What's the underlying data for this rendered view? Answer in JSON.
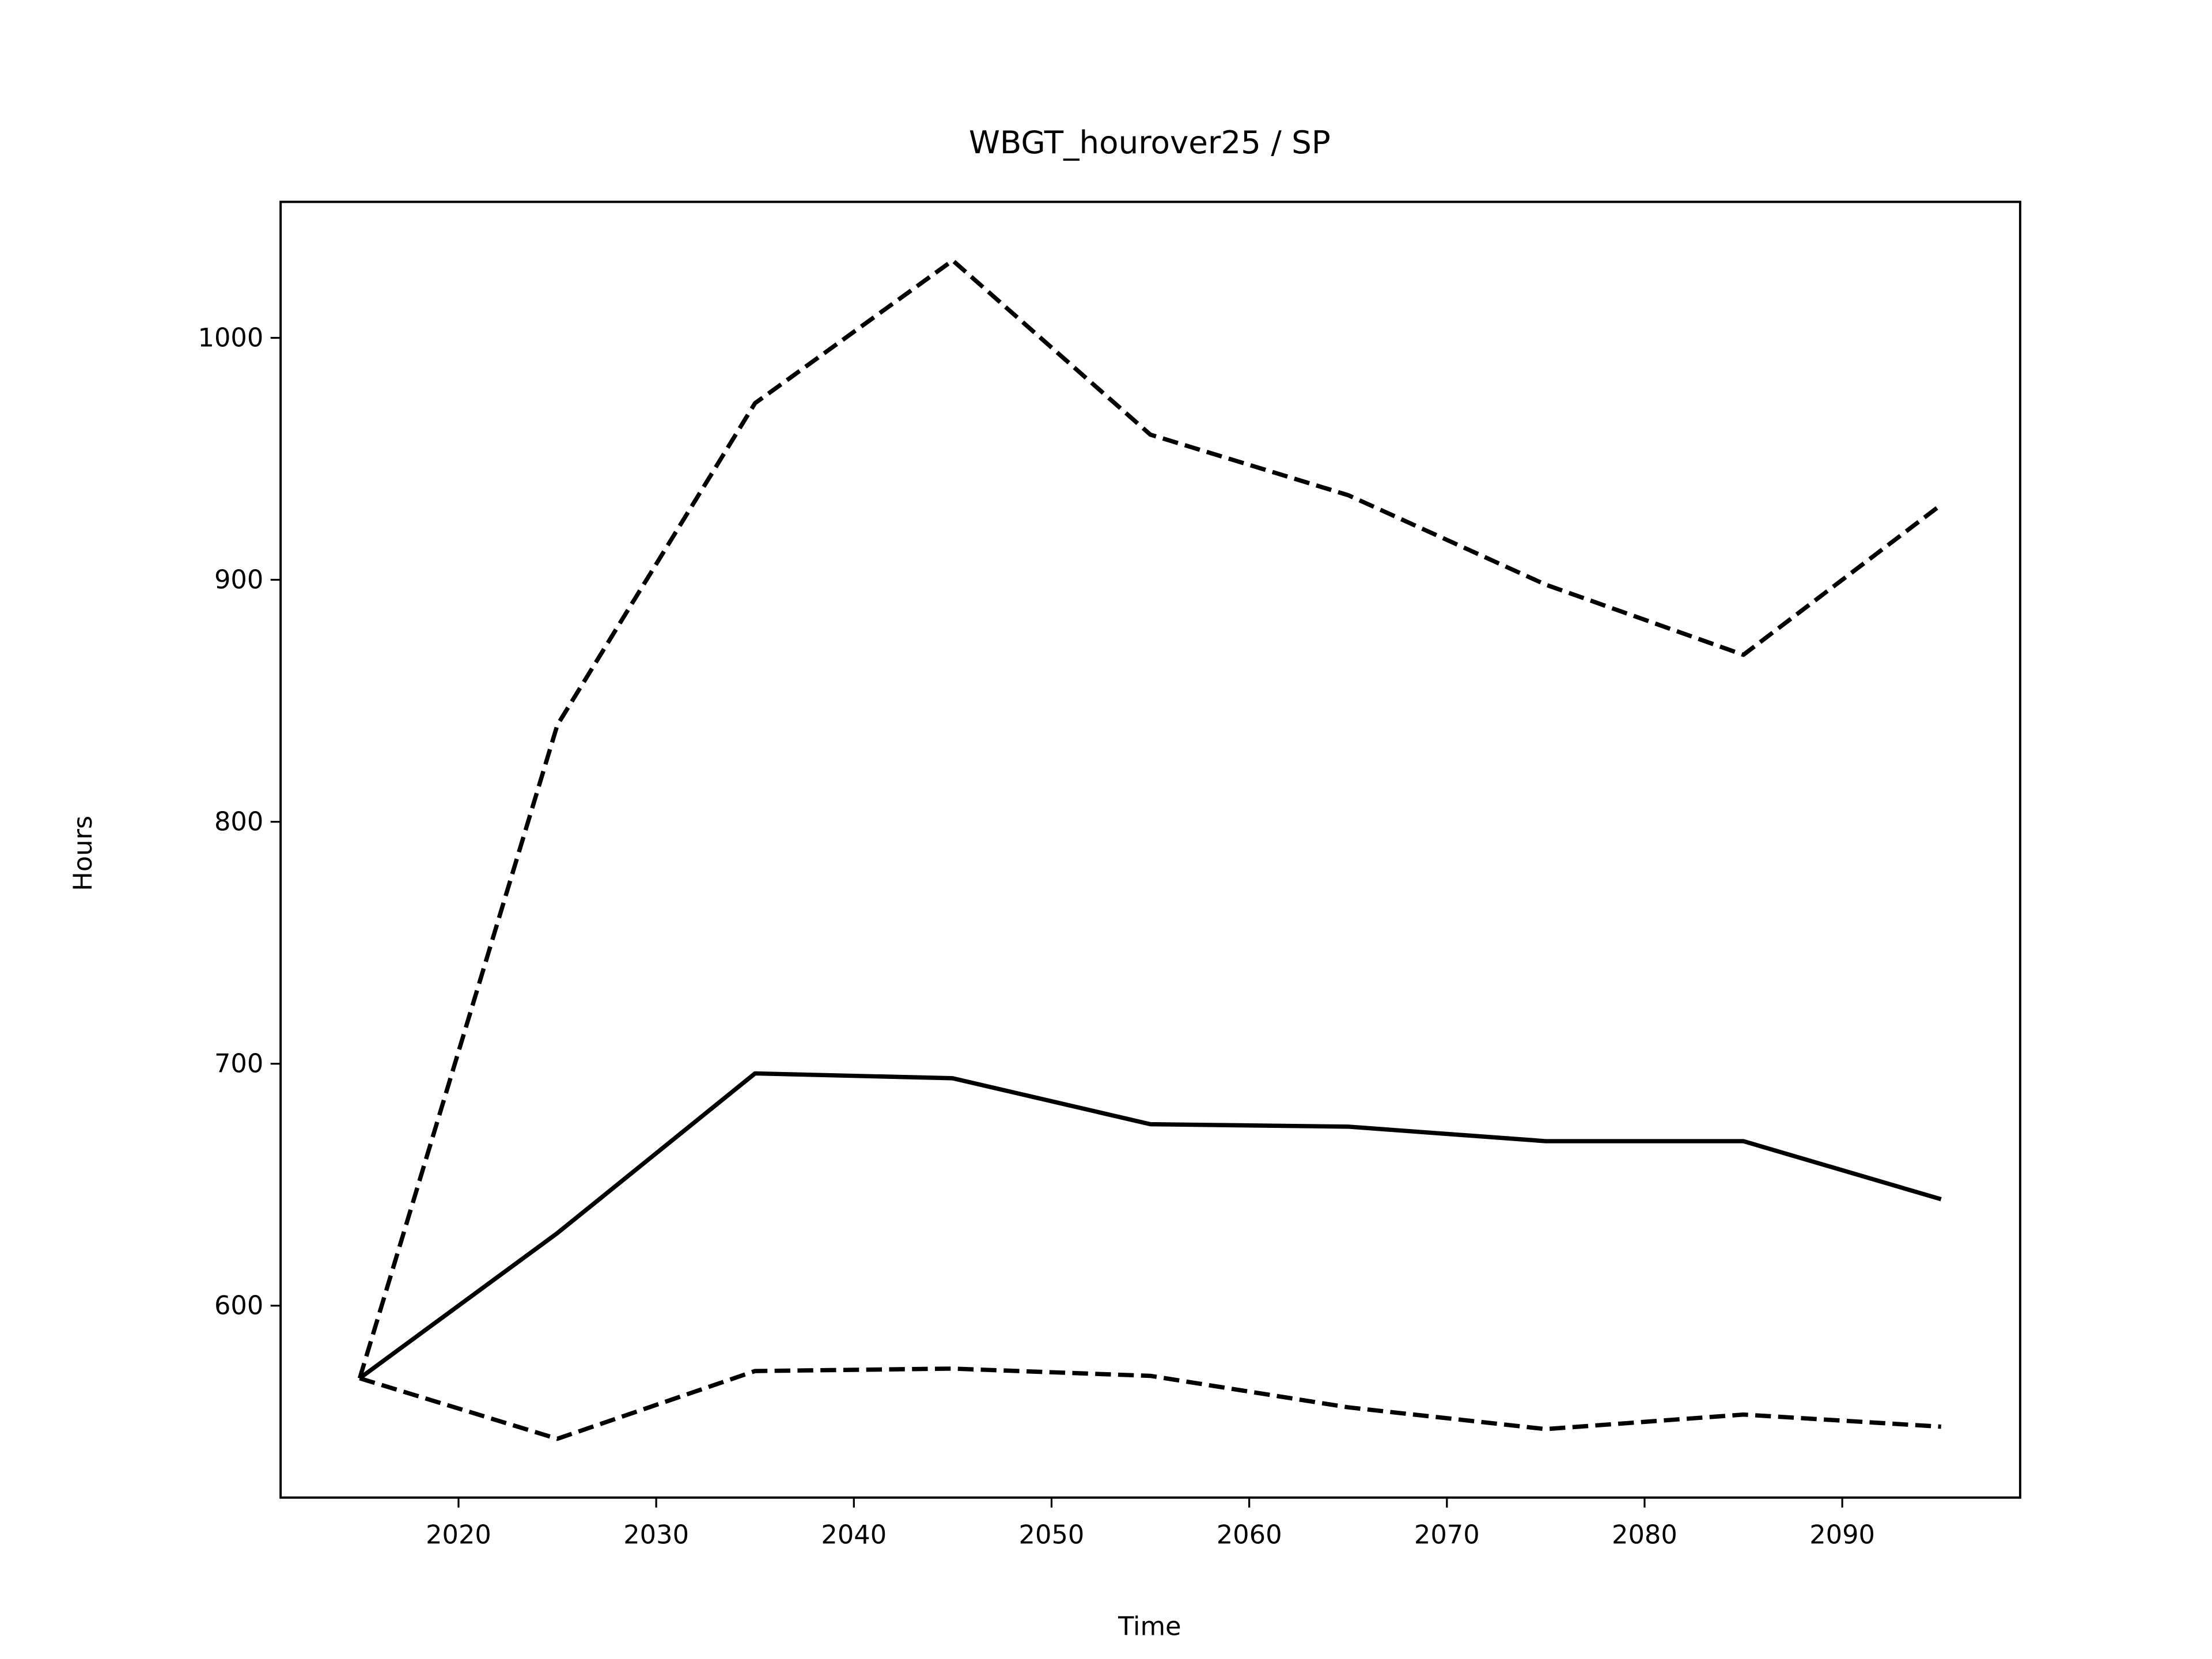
{
  "chart_data": {
    "type": "line",
    "title": "WBGT_hourover25 / SP",
    "xlabel": "Time",
    "ylabel": "Hours",
    "x": [
      2015,
      2025,
      2035,
      2045,
      2055,
      2065,
      2075,
      2085,
      2095
    ],
    "series": [
      {
        "color": "#000000",
        "linestyle": "solid",
        "values": [
          570,
          630,
          696,
          694,
          675,
          674,
          668,
          668,
          644
        ]
      },
      {
        "color": "#000000",
        "linestyle": "dashed",
        "values": [
          570,
          840,
          973,
          1032,
          960,
          935,
          898,
          869,
          931
        ]
      },
      {
        "color": "#000000",
        "linestyle": "dashed",
        "values": [
          570,
          545,
          573,
          574,
          571,
          558,
          549,
          555,
          550
        ]
      }
    ],
    "xlim": [
      2011,
      2099
    ],
    "ylim": [
      520.7,
      1056.2
    ],
    "xticks": [
      2020,
      2030,
      2040,
      2050,
      2060,
      2070,
      2080,
      2090
    ],
    "yticks": [
      600,
      700,
      800,
      900,
      1000
    ]
  }
}
